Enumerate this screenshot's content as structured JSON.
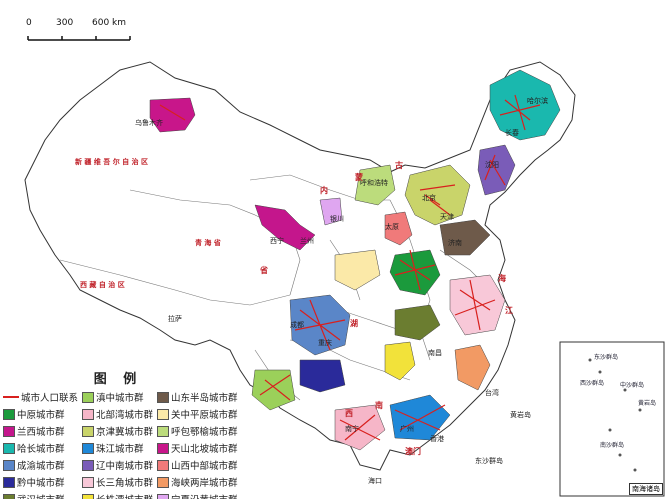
{
  "scale": {
    "labels": [
      "0",
      "300",
      "600 km"
    ]
  },
  "legend": {
    "title": "图 例",
    "items": [
      {
        "label": "城市人口联系",
        "type": "line",
        "color": "#d8201e"
      },
      {
        "label": "滇中城市群",
        "color": "#9bd05a"
      },
      {
        "label": "山东半岛城市群",
        "color": "#6e5a4a"
      },
      {
        "label": "中原城市群",
        "color": "#1b9a3c"
      },
      {
        "label": "北部湾城市群",
        "color": "#f6b6c8"
      },
      {
        "label": "关中平原城市群",
        "color": "#fbe9a8"
      },
      {
        "label": "兰西城市群",
        "color": "#c4168c"
      },
      {
        "label": "京津冀城市群",
        "color": "#c9d46a"
      },
      {
        "label": "呼包鄂榆城市群",
        "color": "#bcdc7c"
      },
      {
        "label": "哈长城市群",
        "color": "#1ab8ae"
      },
      {
        "label": "珠江城市群",
        "color": "#1f88d8"
      },
      {
        "label": "天山北坡城市群",
        "color": "#c8168a"
      },
      {
        "label": "成渝城市群",
        "color": "#5a86c8"
      },
      {
        "label": "辽中南城市群",
        "color": "#7a5cb8"
      },
      {
        "label": "山西中部城市群",
        "color": "#f07a7a"
      },
      {
        "label": "黔中城市群",
        "color": "#2a2a9a"
      },
      {
        "label": "长三角城市群",
        "color": "#f8c8d8"
      },
      {
        "label": "海峡两岸城市群",
        "color": "#f29a64"
      },
      {
        "label": "武汉城市群",
        "color": "#6b7d30"
      },
      {
        "label": "长株潭城市群",
        "color": "#f2e23a"
      },
      {
        "label": "宁夏沿黄城市群",
        "color": "#dfa6f0"
      }
    ]
  },
  "labels": {
    "xinjiang": "新 疆 维 吾 尔 自 治 区",
    "xizang": "西 藏 自 治 区",
    "qinghai": "青 海 省",
    "wulumuqi": "乌鲁木齐",
    "lasa": "拉萨",
    "huhehaote": "呼和浩特",
    "beijing": "北京",
    "tianjin": "天津",
    "haerbin": "哈尔滨",
    "changchun": "长春",
    "shenyang": "沈阳",
    "taiyuan": "太原",
    "jinan": "济南",
    "xining": "西宁",
    "lanzhou": "兰州",
    "yinchuan": "银川",
    "chengdu": "成都",
    "chongqing": "重庆",
    "nanchang": "南昌",
    "nanning": "南宁",
    "aomen": "澳门",
    "haikou": "海口",
    "guangzhou": "广州",
    "xianggang": "香港",
    "dongsha": "东沙群岛",
    "xisha": "西沙群岛",
    "huangyan": "黄岩岛",
    "taiwan": "台湾",
    "inset": "南海诸岛"
  },
  "red_labels": [
    "内",
    "蒙",
    "古",
    "湖",
    "江",
    "海",
    "省",
    "南",
    "西"
  ],
  "inset_labels": [
    "东沙群岛",
    "西沙群岛",
    "中沙群岛",
    "黄岩岛",
    "南沙群岛"
  ]
}
